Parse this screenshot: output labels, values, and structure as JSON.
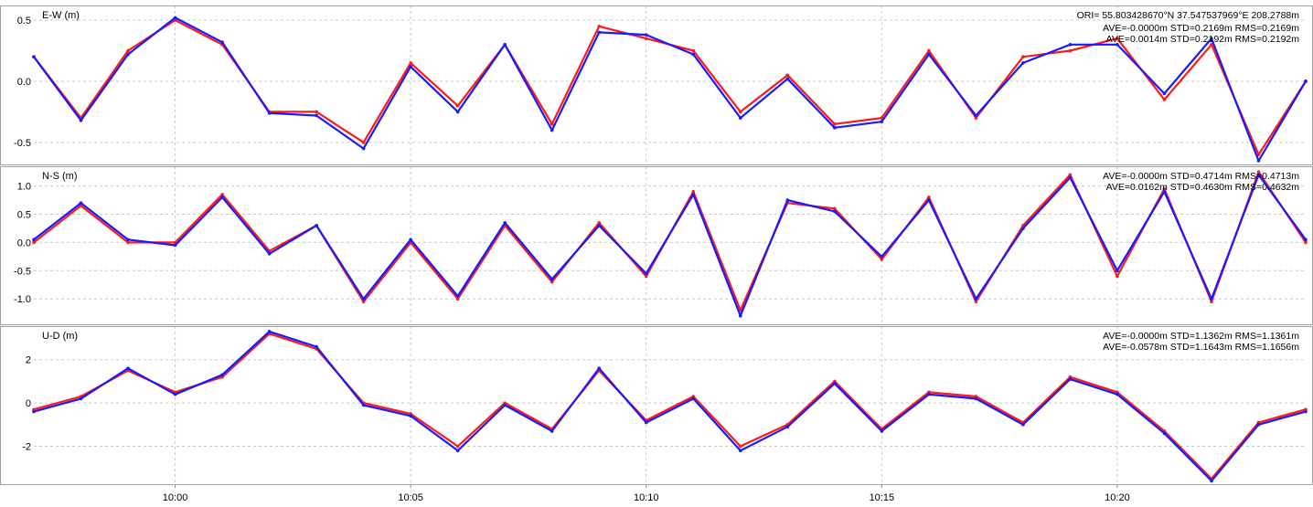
{
  "header": {
    "ori": "ORI= 55.803428670°N   37.547537969°E 208.2788m"
  },
  "colors": {
    "series_red": "#ff1a1a",
    "series_blue": "#1a1aff",
    "grid": "#c8c8c8",
    "panel_border": "#a0a0a0",
    "background": "#ffffff"
  },
  "chart_data": [
    {
      "type": "line",
      "panel_label": "E-W (m)",
      "ylim": [
        -0.68,
        0.62
      ],
      "y_ticks": [
        0.5,
        0.0,
        -0.5
      ],
      "y_tick_labels": [
        "0.5",
        "0.0",
        "-0.5"
      ],
      "grid": true,
      "stats": [
        "AVE=-0.0000m STD=0.2169m RMS=0.2169m",
        "AVE=0.0014m STD=0.2192m RMS=0.2192m"
      ],
      "x": [
        "09:57:00",
        "09:58:00",
        "09:59:00",
        "10:00:00",
        "10:01:00",
        "10:02:00",
        "10:03:00",
        "10:04:00",
        "10:05:00",
        "10:06:00",
        "10:07:00",
        "10:08:00",
        "10:09:00",
        "10:10:00",
        "10:11:00",
        "10:12:00",
        "10:13:00",
        "10:14:00",
        "10:15:00",
        "10:16:00",
        "10:17:00",
        "10:18:00",
        "10:19:00",
        "10:20:00",
        "10:21:00",
        "10:22:00",
        "10:23:00",
        "10:24:00"
      ],
      "series": [
        {
          "color": "red",
          "values": [
            0.2,
            -0.3,
            0.25,
            0.5,
            0.3,
            -0.25,
            -0.25,
            -0.5,
            0.15,
            -0.2,
            0.3,
            -0.35,
            0.45,
            0.35,
            0.25,
            -0.25,
            0.05,
            -0.35,
            -0.3,
            0.25,
            -0.3,
            0.2,
            0.25,
            0.35,
            -0.15,
            0.3,
            -0.6,
            0.0
          ]
        },
        {
          "color": "blue",
          "values": [
            0.2,
            -0.32,
            0.22,
            0.52,
            0.32,
            -0.26,
            -0.28,
            -0.55,
            0.12,
            -0.25,
            0.3,
            -0.4,
            0.4,
            0.38,
            0.22,
            -0.3,
            0.02,
            -0.38,
            -0.33,
            0.22,
            -0.28,
            0.15,
            0.3,
            0.3,
            -0.1,
            0.35,
            -0.65,
            0.0
          ]
        }
      ]
    },
    {
      "type": "line",
      "panel_label": "N-S (m)",
      "ylim": [
        -1.45,
        1.35
      ],
      "y_ticks": [
        1.0,
        0.5,
        0.0,
        -0.5,
        -1.0
      ],
      "y_tick_labels": [
        "1.0",
        "0.5",
        "0.0",
        "-0.5",
        "-1.0"
      ],
      "grid": true,
      "stats": [
        "AVE=-0.0000m STD=0.4714m RMS=0.4713m",
        "AVE=0.0162m STD=0.4630m RMS=0.4632m"
      ],
      "x": [
        "09:57:00",
        "09:58:00",
        "09:59:00",
        "10:00:00",
        "10:01:00",
        "10:02:00",
        "10:03:00",
        "10:04:00",
        "10:05:00",
        "10:06:00",
        "10:07:00",
        "10:08:00",
        "10:09:00",
        "10:10:00",
        "10:11:00",
        "10:12:00",
        "10:13:00",
        "10:14:00",
        "10:15:00",
        "10:16:00",
        "10:17:00",
        "10:18:00",
        "10:19:00",
        "10:20:00",
        "10:21:00",
        "10:22:00",
        "10:23:00",
        "10:24:00"
      ],
      "series": [
        {
          "color": "red",
          "values": [
            0.0,
            0.65,
            0.0,
            0.0,
            0.85,
            -0.15,
            0.3,
            -1.05,
            0.0,
            -1.0,
            0.3,
            -0.7,
            0.35,
            -0.6,
            0.9,
            -1.2,
            0.7,
            0.6,
            -0.3,
            0.8,
            -1.05,
            0.3,
            1.2,
            -0.6,
            0.95,
            -1.05,
            1.25,
            0.0
          ]
        },
        {
          "color": "blue",
          "values": [
            0.05,
            0.7,
            0.05,
            -0.05,
            0.8,
            -0.2,
            0.3,
            -1.0,
            0.05,
            -0.95,
            0.35,
            -0.65,
            0.3,
            -0.55,
            0.85,
            -1.3,
            0.75,
            0.55,
            -0.25,
            0.75,
            -1.0,
            0.25,
            1.15,
            -0.5,
            0.9,
            -1.0,
            1.2,
            0.05
          ]
        }
      ]
    },
    {
      "type": "line",
      "panel_label": "U-D (m)",
      "ylim": [
        -3.75,
        3.55
      ],
      "y_ticks": [
        2,
        0,
        -2
      ],
      "y_tick_labels": [
        "2",
        "0",
        "-2"
      ],
      "grid": true,
      "stats": [
        "AVE=-0.0000m STD=1.1362m RMS=1.1361m",
        "AVE=-0.0578m STD=1.1643m RMS=1.1656m"
      ],
      "x": [
        "09:57:00",
        "09:58:00",
        "09:59:00",
        "10:00:00",
        "10:01:00",
        "10:02:00",
        "10:03:00",
        "10:04:00",
        "10:05:00",
        "10:06:00",
        "10:07:00",
        "10:08:00",
        "10:09:00",
        "10:10:00",
        "10:11:00",
        "10:12:00",
        "10:13:00",
        "10:14:00",
        "10:15:00",
        "10:16:00",
        "10:17:00",
        "10:18:00",
        "10:19:00",
        "10:20:00",
        "10:21:00",
        "10:22:00",
        "10:23:00",
        "10:24:00"
      ],
      "series": [
        {
          "color": "red",
          "values": [
            -0.3,
            0.3,
            1.5,
            0.5,
            1.2,
            3.2,
            2.5,
            0.0,
            -0.5,
            -2.0,
            0.0,
            -1.2,
            1.5,
            -0.8,
            0.3,
            -2.0,
            -1.0,
            1.0,
            -1.2,
            0.5,
            0.3,
            -0.9,
            1.2,
            0.5,
            -1.3,
            -3.5,
            -0.9,
            -0.3
          ]
        },
        {
          "color": "blue",
          "values": [
            -0.4,
            0.2,
            1.6,
            0.4,
            1.3,
            3.3,
            2.6,
            -0.1,
            -0.6,
            -2.2,
            -0.1,
            -1.3,
            1.6,
            -0.9,
            0.2,
            -2.2,
            -1.1,
            0.9,
            -1.3,
            0.4,
            0.2,
            -1.0,
            1.1,
            0.4,
            -1.4,
            -3.6,
            -1.0,
            -0.4
          ]
        }
      ]
    }
  ],
  "x_axis": {
    "ticks": [
      "10:00",
      "10:05",
      "10:10",
      "10:15",
      "10:20"
    ],
    "tick_values": [
      "10:00:00",
      "10:05:00",
      "10:10:00",
      "10:15:00",
      "10:20:00"
    ],
    "range": [
      "09:57:00",
      "10:24:00"
    ]
  }
}
